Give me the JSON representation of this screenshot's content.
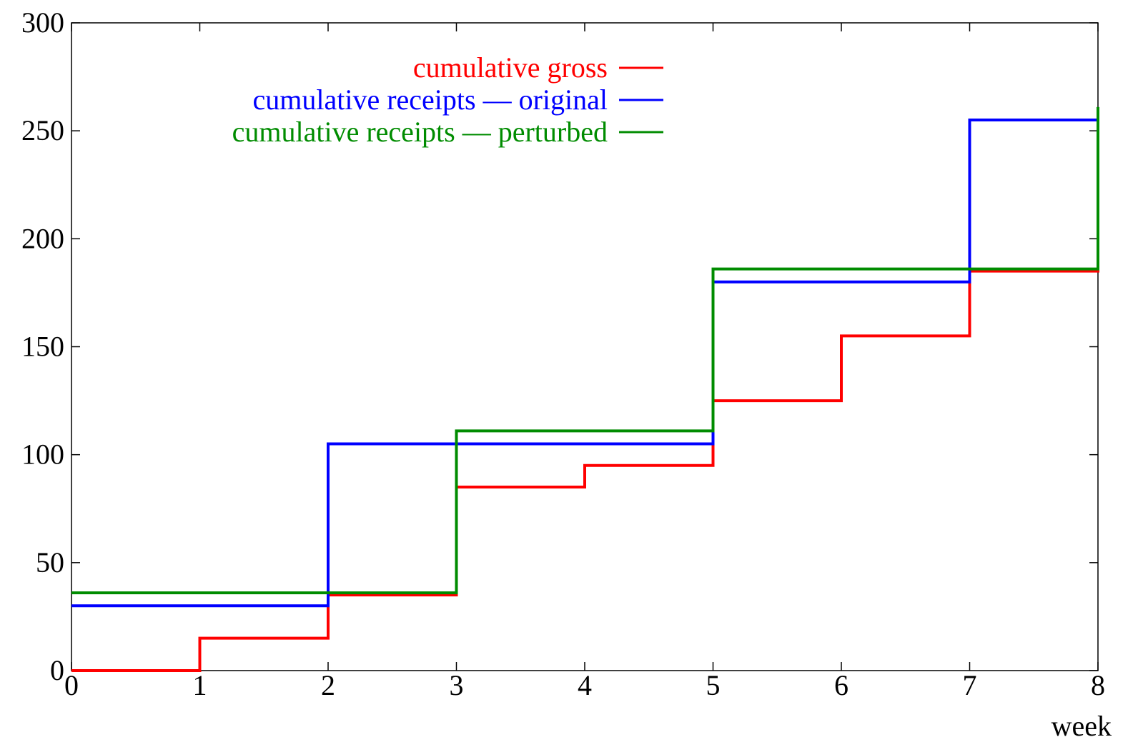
{
  "chart_data": {
    "type": "line",
    "step": true,
    "xlabel": "week",
    "ylabel": "",
    "title": "",
    "xlim": [
      0,
      8
    ],
    "ylim": [
      0,
      300
    ],
    "xticks": [
      "0",
      "1",
      "2",
      "3",
      "4",
      "5",
      "6",
      "7",
      "8"
    ],
    "yticks": [
      "0",
      "50",
      "100",
      "150",
      "200",
      "250",
      "300"
    ],
    "grid": false,
    "legend_position": "top",
    "series": [
      {
        "name": "cumulative gross",
        "color": "#ff0000",
        "x": [
          0,
          1,
          2,
          3,
          4,
          5,
          6,
          7,
          8
        ],
        "y": [
          0,
          15,
          35,
          85,
          95,
          125,
          155,
          185,
          215
        ]
      },
      {
        "name": "cumulative receipts –– original",
        "color": "#0000ff",
        "x": [
          0,
          2,
          5,
          7,
          8
        ],
        "y": [
          30,
          105,
          180,
          255,
          255
        ]
      },
      {
        "name": "cumulative receipts –– perturbed",
        "color": "#008c00",
        "x": [
          0,
          3,
          5,
          8
        ],
        "y": [
          36,
          111,
          186,
          261
        ]
      }
    ]
  }
}
